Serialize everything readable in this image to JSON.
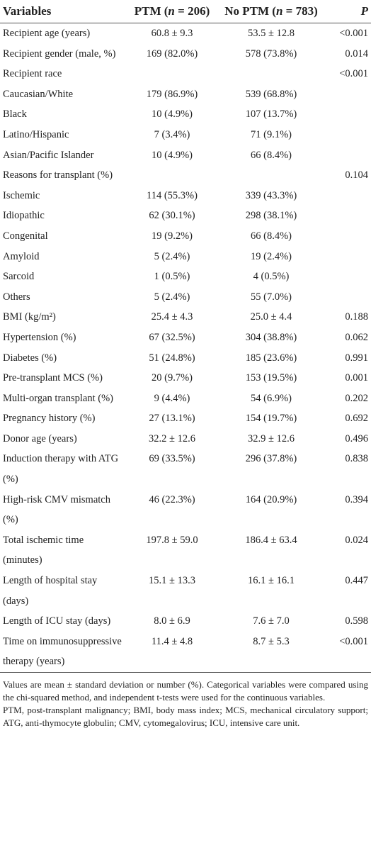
{
  "table": {
    "header": [
      {
        "text": "Variables"
      },
      {
        "text": "PTM (",
        "italic": "n",
        "after": " = 206)"
      },
      {
        "text": "No PTM (",
        "italic": "n",
        "after": " = 783)"
      },
      {
        "italic": "P"
      }
    ],
    "rows": [
      [
        "Recipient age (years)",
        "60.8 ± 9.3",
        "53.5 ± 12.8",
        "<0.001"
      ],
      [
        "Recipient gender (male, %)",
        "169 (82.0%)",
        "578 (73.8%)",
        "0.014"
      ],
      [
        "Recipient race",
        null,
        null,
        "<0.001"
      ],
      [
        "Caucasian/White",
        "179 (86.9%)",
        "539 (68.8%)",
        null
      ],
      [
        "Black",
        "10 (4.9%)",
        "107 (13.7%)",
        null
      ],
      [
        "Latino/Hispanic",
        "7 (3.4%)",
        "71 (9.1%)",
        null
      ],
      [
        "Asian/Pacific Islander",
        "10 (4.9%)",
        "66 (8.4%)",
        null
      ],
      [
        "Reasons for transplant (%)",
        null,
        null,
        "0.104"
      ],
      [
        "Ischemic",
        "114 (55.3%)",
        "339 (43.3%)",
        null
      ],
      [
        "Idiopathic",
        "62 (30.1%)",
        "298 (38.1%)",
        null
      ],
      [
        "Congenital",
        "19 (9.2%)",
        "66 (8.4%)",
        null
      ],
      [
        "Amyloid",
        "5 (2.4%)",
        "19 (2.4%)",
        null
      ],
      [
        "Sarcoid",
        "1 (0.5%)",
        "4 (0.5%)",
        null
      ],
      [
        "Others",
        "5 (2.4%)",
        "55 (7.0%)",
        null
      ],
      [
        "BMI (kg/m²)",
        "25.4 ± 4.3",
        "25.0 ± 4.4",
        "0.188"
      ],
      [
        "Hypertension (%)",
        "67 (32.5%)",
        "304 (38.8%)",
        "0.062"
      ],
      [
        "Diabetes (%)",
        "51 (24.8%)",
        "185 (23.6%)",
        "0.991"
      ],
      [
        "Pre-transplant MCS (%)",
        "20 (9.7%)",
        "153 (19.5%)",
        "0.001"
      ],
      [
        "Multi-organ transplant (%)",
        "9 (4.4%)",
        "54 (6.9%)",
        "0.202"
      ],
      [
        "Pregnancy history (%)",
        "27 (13.1%)",
        "154 (19.7%)",
        "0.692"
      ],
      [
        "Donor age (years)",
        "32.2 ± 12.6",
        "32.9 ± 12.6",
        "0.496"
      ],
      [
        "Induction therapy with ATG (%)",
        "69 (33.5%)",
        "296 (37.8%)",
        "0.838"
      ],
      [
        "High-risk CMV mismatch (%)",
        "46 (22.3%)",
        "164 (20.9%)",
        "0.394"
      ],
      [
        "Total ischemic time (minutes)",
        "197.8 ± 59.0",
        "186.4 ± 63.4",
        "0.024"
      ],
      [
        "Length of hospital stay (days)",
        "15.1 ± 13.3",
        "16.1 ± 16.1",
        "0.447"
      ],
      [
        "Length of ICU stay (days)",
        "8.0 ± 6.9",
        "7.6 ± 7.0",
        "0.598"
      ],
      [
        "Time on immunosuppressive therapy (years)",
        "11.4 ± 4.8",
        "8.7 ± 5.3",
        "<0.001"
      ]
    ],
    "footnotes": [
      "Values are mean ± standard deviation or number (%). Categorical variables were compared using the chi-squared method, and independent t-tests were used for the continuous variables.",
      "PTM, post-transplant malignancy; BMI, body mass index; MCS, mechanical circulatory support; ATG, anti-thymocyte globulin; CMV, cytomegalovirus; ICU, intensive care unit."
    ]
  }
}
